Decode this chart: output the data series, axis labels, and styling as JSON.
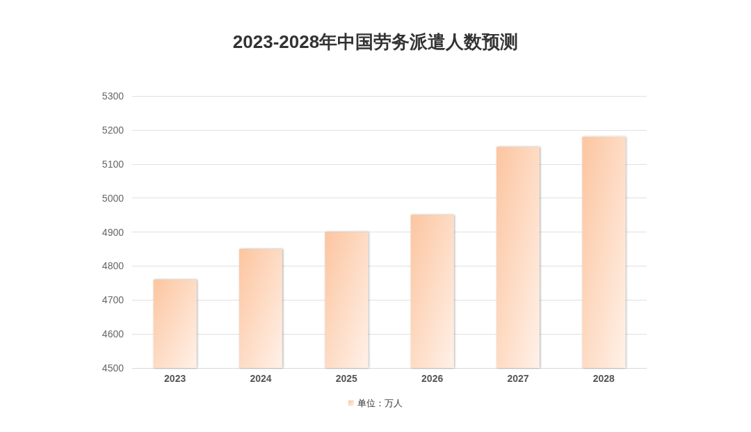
{
  "chart_data": {
    "type": "bar",
    "title": "2023-2028年中国劳务派遣人数预测",
    "categories": [
      "2023",
      "2024",
      "2025",
      "2026",
      "2027",
      "2028"
    ],
    "series": [
      {
        "name": "单位：万人",
        "color": "#fcc5a0",
        "values": [
          4760,
          4850,
          4900,
          4950,
          5150,
          5180
        ]
      }
    ],
    "ylim": [
      4500,
      5300
    ],
    "yticks": [
      4500,
      4600,
      4700,
      4800,
      4900,
      5000,
      5100,
      5200,
      5300
    ],
    "grid": "y",
    "legend": "bottom"
  }
}
